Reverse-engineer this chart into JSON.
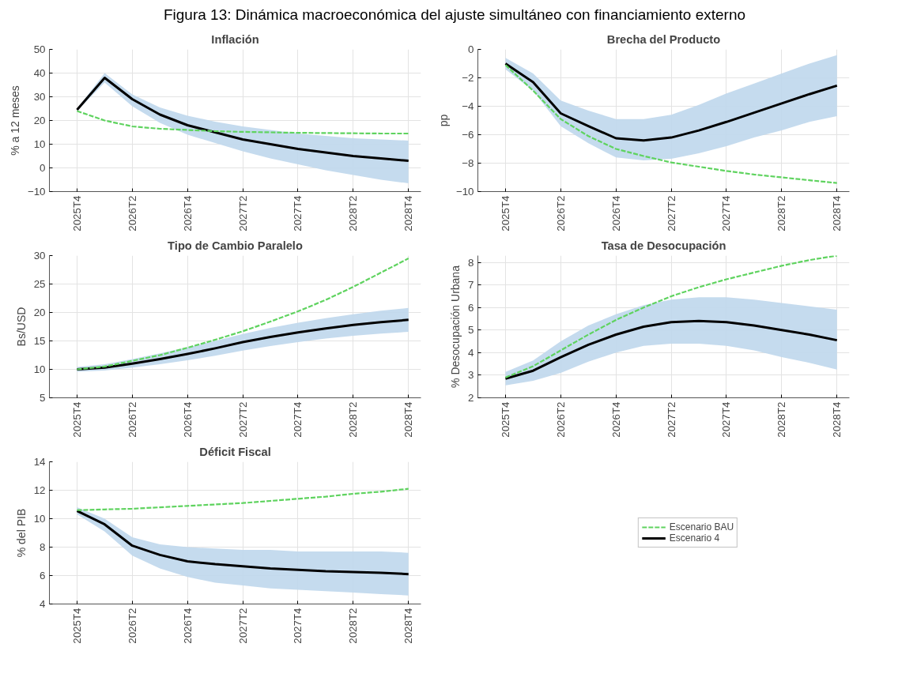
{
  "chart_data": [
    {
      "type": "line",
      "title": "Inflación",
      "ylabel": "% a 12 meses",
      "annotations": [
        "Figura 13: Dinámica macroeconómica del ajuste simultáneo con financiamiento externo"
      ],
      "categories": [
        "2025T4",
        null,
        "2026T2",
        null,
        "2026T4",
        null,
        "2027T2",
        null,
        "2027T4",
        null,
        "2028T2",
        null,
        "2028T4"
      ],
      "ylim": [
        -10,
        50
      ],
      "yticks": [
        -10,
        0,
        10,
        20,
        30,
        40,
        50
      ],
      "grid": true,
      "legend": false,
      "series": [
        {
          "color": "#5fd35f",
          "line_style": "dashed",
          "values": [
            24,
            20,
            17.5,
            16.5,
            16,
            15.5,
            15.2,
            15,
            14.8,
            14.7,
            14.6,
            14.5,
            14.5
          ]
        },
        {
          "color": "#000000",
          "line_style": "solid",
          "values": [
            24.5,
            38,
            29,
            22.5,
            18,
            15,
            12,
            10,
            8,
            6.5,
            5,
            4,
            3
          ],
          "lower": [
            24,
            36,
            26,
            19,
            14,
            10.5,
            7,
            4,
            1.5,
            -1,
            -3,
            -5,
            -6.5
          ],
          "upper": [
            25,
            40,
            31,
            25.5,
            22,
            19.5,
            17.5,
            16,
            14.5,
            13.5,
            12.5,
            12,
            11.5
          ]
        }
      ]
    },
    {
      "type": "line",
      "title": "Brecha del Producto",
      "ylabel": "pp",
      "categories": [
        "2025T4",
        null,
        "2026T2",
        null,
        "2026T4",
        null,
        "2027T2",
        null,
        "2027T4",
        null,
        "2028T2",
        null,
        "2028T4"
      ],
      "ylim": [
        -10,
        0
      ],
      "yticks": [
        -10,
        -8,
        -6,
        -4,
        -2,
        0
      ],
      "grid": true,
      "legend": false,
      "series": [
        {
          "color": "#5fd35f",
          "line_style": "dashed",
          "values": [
            -1.1,
            -2.9,
            -4.9,
            -6.1,
            -7,
            -7.5,
            -7.95,
            -8.25,
            -8.55,
            -8.8,
            -9,
            -9.2,
            -9.4
          ]
        },
        {
          "color": "#000000",
          "line_style": "solid",
          "values": [
            -1,
            -2.3,
            -4.5,
            -5.4,
            -6.25,
            -6.4,
            -6.2,
            -5.7,
            -5.1,
            -4.45,
            -3.8,
            -3.15,
            -2.55
          ],
          "lower": [
            -1.4,
            -2.9,
            -5.4,
            -6.6,
            -7.6,
            -7.8,
            -7.7,
            -7.3,
            -6.8,
            -6.2,
            -5.7,
            -5.1,
            -4.7
          ],
          "upper": [
            -0.6,
            -1.7,
            -3.6,
            -4.3,
            -4.9,
            -4.9,
            -4.6,
            -3.9,
            -3.1,
            -2.4,
            -1.7,
            -1,
            -0.4
          ]
        }
      ]
    },
    {
      "type": "line",
      "title": "Tipo de Cambio Paralelo",
      "ylabel": "Bs/USD",
      "categories": [
        "2025T4",
        null,
        "2026T2",
        null,
        "2026T4",
        null,
        "2027T2",
        null,
        "2027T4",
        null,
        "2028T2",
        null,
        "2028T4"
      ],
      "ylim": [
        5,
        30
      ],
      "yticks": [
        5,
        10,
        15,
        20,
        25,
        30
      ],
      "grid": true,
      "legend": false,
      "series": [
        {
          "color": "#5fd35f",
          "line_style": "dashed",
          "values": [
            10,
            10.5,
            11.5,
            12.5,
            13.8,
            15.2,
            16.7,
            18.4,
            20.2,
            22.2,
            24.5,
            27,
            29.5
          ]
        },
        {
          "color": "#000000",
          "line_style": "solid",
          "values": [
            10,
            10.3,
            11,
            11.8,
            12.7,
            13.7,
            14.8,
            15.7,
            16.5,
            17.2,
            17.8,
            18.3,
            18.7
          ],
          "lower": [
            9.6,
            9.8,
            10.3,
            10.9,
            11.6,
            12.4,
            13.3,
            14.1,
            14.8,
            15.4,
            15.9,
            16.3,
            16.6
          ],
          "upper": [
            10.4,
            10.9,
            11.8,
            12.8,
            13.9,
            15,
            16.2,
            17.3,
            18.2,
            19,
            19.7,
            20.3,
            20.8
          ]
        }
      ]
    },
    {
      "type": "line",
      "title": "Tasa de Desocupación",
      "ylabel": "% Desocupación Urbana",
      "categories": [
        "2025T4",
        null,
        "2026T2",
        null,
        "2026T4",
        null,
        "2027T2",
        null,
        "2027T4",
        null,
        "2028T2",
        null,
        "2028T4"
      ],
      "ylim": [
        2,
        8.3
      ],
      "yticks": [
        2,
        3,
        4,
        5,
        6,
        7,
        8
      ],
      "grid": true,
      "legend": false,
      "series": [
        {
          "color": "#5fd35f",
          "line_style": "dashed",
          "values": [
            2.9,
            3.4,
            4.1,
            4.8,
            5.45,
            6,
            6.5,
            6.9,
            7.25,
            7.55,
            7.85,
            8.1,
            8.3
          ]
        },
        {
          "color": "#000000",
          "line_style": "solid",
          "values": [
            2.85,
            3.2,
            3.8,
            4.35,
            4.8,
            5.15,
            5.35,
            5.4,
            5.35,
            5.2,
            5,
            4.8,
            4.55
          ],
          "lower": [
            2.55,
            2.75,
            3.1,
            3.6,
            4,
            4.3,
            4.4,
            4.4,
            4.3,
            4.1,
            3.8,
            3.55,
            3.25
          ],
          "upper": [
            3.15,
            3.65,
            4.5,
            5.2,
            5.7,
            6.1,
            6.35,
            6.45,
            6.45,
            6.35,
            6.2,
            6.05,
            5.9
          ]
        }
      ]
    },
    {
      "type": "line",
      "title": "Déficit Fiscal",
      "ylabel": "% del PIB",
      "categories": [
        "2025T4",
        null,
        "2026T2",
        null,
        "2026T4",
        null,
        "2027T2",
        null,
        "2027T4",
        null,
        "2028T2",
        null,
        "2028T4"
      ],
      "ylim": [
        4,
        14
      ],
      "yticks": [
        4,
        6,
        8,
        10,
        12,
        14
      ],
      "grid": true,
      "legend": "right",
      "series": [
        {
          "name": "Escenario BAU",
          "color": "#5fd35f",
          "line_style": "dashed",
          "values": [
            10.6,
            10.65,
            10.7,
            10.8,
            10.9,
            11,
            11.1,
            11.25,
            11.4,
            11.55,
            11.75,
            11.9,
            12.1
          ]
        },
        {
          "name": "Escenario 4",
          "color": "#000000",
          "line_style": "solid",
          "values": [
            10.55,
            9.6,
            8.1,
            7.45,
            7,
            6.8,
            6.65,
            6.5,
            6.4,
            6.3,
            6.25,
            6.2,
            6.1
          ],
          "lower": [
            10.3,
            9.1,
            7.4,
            6.5,
            5.9,
            5.5,
            5.3,
            5.1,
            5,
            4.9,
            4.8,
            4.7,
            4.6
          ],
          "upper": [
            10.8,
            10,
            8.7,
            8.2,
            8,
            7.9,
            7.8,
            7.8,
            7.7,
            7.7,
            7.7,
            7.7,
            7.6
          ]
        }
      ]
    }
  ]
}
